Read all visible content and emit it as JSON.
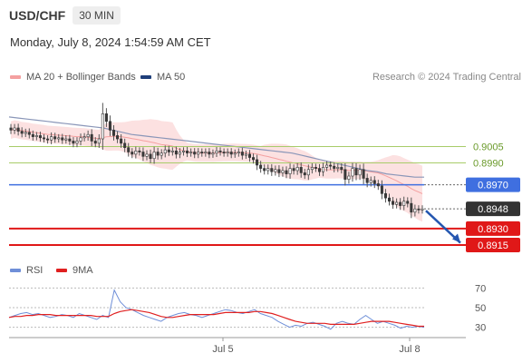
{
  "header": {
    "symbol": "USD/CHF",
    "timeframe": "30 MIN",
    "timestamp": "Monday, July 8, 2024 1:54:59 AM CET"
  },
  "legend": {
    "ma20": {
      "label": "MA 20 + Bollinger Bands",
      "color": "#f4a0a0"
    },
    "ma50": {
      "label": "MA 50",
      "color": "#1f3f7a"
    },
    "rsi": {
      "label": "RSI",
      "color": "#6f8fd8"
    },
    "ma9": {
      "label": "9MA",
      "color": "#e02020"
    }
  },
  "copyright": "Research © 2024 Trading Central",
  "chart_data": {
    "type": "candlestick",
    "ylim": [
      0.8905,
      0.9056
    ],
    "x_ticks": [
      "Jul 5",
      "Jul 8"
    ],
    "levels": [
      {
        "value": "0.9005",
        "color": "#a8cc6a",
        "line": "resistance"
      },
      {
        "value": "0.8990",
        "color": "#a8cc6a",
        "line": "resistance"
      },
      {
        "value": "0.8970",
        "color": "#3f6fe0",
        "line": "pivot"
      },
      {
        "value": "0.8948",
        "color": "#333333",
        "line": "current"
      },
      {
        "value": "0.8930",
        "color": "#e01818",
        "line": "support"
      },
      {
        "value": "0.8915",
        "color": "#e01818",
        "line": "support"
      }
    ],
    "close": [
      0.902,
      0.9022,
      0.9019,
      0.9017,
      0.9018,
      0.9016,
      0.9014,
      0.9015,
      0.9013,
      0.9012,
      0.9011,
      0.9014,
      0.9012,
      0.9013,
      0.9011,
      0.9012,
      0.901,
      0.9008,
      0.901,
      0.9013,
      0.9014,
      0.9016,
      0.901,
      0.9008,
      0.9012,
      0.9035,
      0.9028,
      0.902,
      0.9015,
      0.9012,
      0.9008,
      0.9004,
      0.9,
      0.8998,
      0.9001,
      0.9,
      0.8996,
      0.8998,
      0.8994,
      0.9,
      0.8997,
      0.8999,
      0.9002,
      0.9,
      0.9001,
      0.8998,
      0.9,
      0.9001,
      0.8999,
      0.9,
      0.8998,
      0.9,
      0.8999,
      0.9,
      0.8998,
      0.8999,
      0.9001,
      0.9,
      0.8999,
      0.9,
      0.8998,
      0.8999,
      0.9,
      0.8997,
      0.8998,
      0.8995,
      0.8993,
      0.8988,
      0.8985,
      0.8983,
      0.8985,
      0.8982,
      0.8984,
      0.8981,
      0.8983,
      0.898,
      0.8985,
      0.8983,
      0.8986,
      0.8981,
      0.8979,
      0.8984,
      0.8986,
      0.8985,
      0.8982,
      0.8986,
      0.8988,
      0.8987,
      0.8985,
      0.8986,
      0.8984,
      0.8975,
      0.8978,
      0.8985,
      0.8979,
      0.8984,
      0.8976,
      0.8972,
      0.8974,
      0.8971,
      0.8969,
      0.8962,
      0.8958,
      0.8955,
      0.8952,
      0.8954,
      0.8951,
      0.8955,
      0.8953,
      0.8945,
      0.8948,
      0.8947,
      0.8948
    ],
    "ma50": [
      0.9032,
      0.9031,
      0.903,
      0.9029,
      0.9028,
      0.9027,
      0.9026,
      0.9025,
      0.9024,
      0.9023,
      0.9022,
      0.902,
      0.9018,
      0.9016,
      0.9015,
      0.9014,
      0.9013,
      0.9012,
      0.9011,
      0.901,
      0.9009,
      0.9008,
      0.9007,
      0.9006,
      0.9005,
      0.9004,
      0.9003,
      0.9002,
      0.9001,
      0.9,
      0.8999,
      0.8997,
      0.8995,
      0.8993,
      0.8991,
      0.8989,
      0.8987,
      0.8985,
      0.8983,
      0.8982,
      0.898,
      0.8979,
      0.8978,
      0.8977,
      0.8977
    ],
    "rsi_ylim": [
      25,
      75
    ],
    "rsi_ticks": [
      "70",
      "50",
      "30"
    ],
    "rsi": [
      40,
      42,
      44,
      45,
      43,
      44,
      42,
      40,
      41,
      43,
      42,
      40,
      44,
      42,
      40,
      38,
      42,
      40,
      68,
      56,
      50,
      48,
      45,
      42,
      40,
      38,
      36,
      40,
      42,
      44,
      45,
      43,
      42,
      40,
      42,
      44,
      46,
      48,
      47,
      45,
      44,
      46,
      48,
      44,
      42,
      40,
      36,
      33,
      30,
      32,
      31,
      34,
      35,
      33,
      31,
      28,
      34,
      36,
      34,
      33,
      38,
      42,
      38,
      34,
      36,
      34,
      32,
      29,
      31,
      30,
      31,
      30
    ],
    "rsi_ma": [
      40,
      41,
      41,
      42,
      42,
      43,
      43,
      43,
      42,
      42,
      42,
      42,
      42,
      42,
      42,
      41,
      41,
      41,
      44,
      46,
      47,
      48,
      47,
      46,
      45,
      43,
      41,
      40,
      40,
      41,
      42,
      43,
      43,
      43,
      43,
      43,
      44,
      45,
      45,
      45,
      45,
      45,
      46,
      46,
      45,
      44,
      42,
      40,
      38,
      36,
      35,
      34,
      34,
      34,
      34,
      33,
      33,
      33,
      33,
      33,
      34,
      35,
      36,
      36,
      36,
      36,
      35,
      34,
      33,
      32,
      31,
      31
    ]
  }
}
